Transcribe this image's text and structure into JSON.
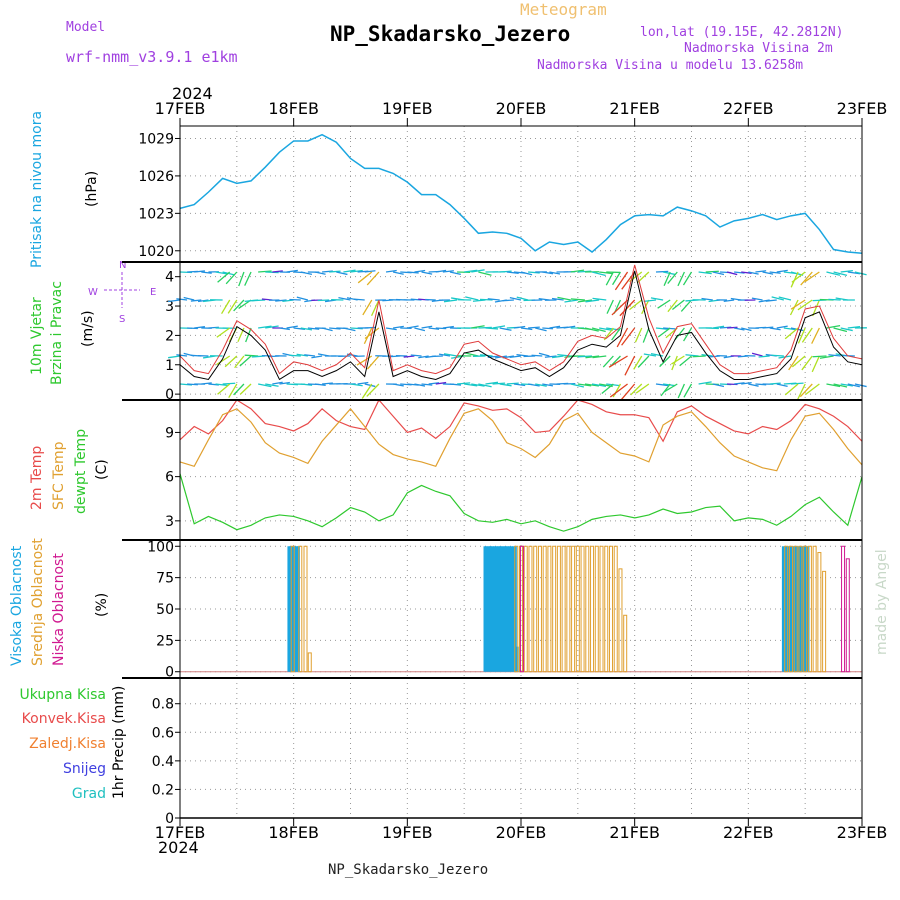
{
  "header": {
    "model_label": "Model",
    "model_value": "wrf-nmm_v3.9.1 e1km",
    "meteogram_label": "Meteogram",
    "station": "NP_Skadarsko_Jezero",
    "lonlat": "lon,lat (19.15E, 42.2812N)",
    "altitude": "Nadmorska Visina 2m",
    "model_altitude": "Nadmorska Visina u modelu 13.6258m",
    "footer_station": "NP_Skadarsko_Jezero",
    "watermark": "made by Angel",
    "year_top": "2024",
    "year_bottom": "2024"
  },
  "dates": [
    "17FEB",
    "18FEB",
    "19FEB",
    "20FEB",
    "21FEB",
    "22FEB",
    "23FEB"
  ],
  "panel_labels": {
    "pressure": [
      "Pritisak na nivou mora",
      "(hPa)"
    ],
    "wind": [
      "10m Vjetar",
      "Brzina i Pravac",
      "(m/s)"
    ],
    "compass": {
      "n": "N",
      "s": "S",
      "e": "E",
      "w": "W"
    },
    "temp": [
      "2m Temp",
      "SFC Temp",
      "dewpt Temp",
      "(C)"
    ],
    "cloud": [
      "Visoka Oblacnost",
      "Srednja Oblacnost",
      "Niska Oblacnost",
      "(%)"
    ],
    "precip_legend": [
      "Ukupna Kisa",
      "Konvek.Kisa",
      "Zaledj.Kisa",
      "Snijeg",
      "Grad"
    ],
    "precip_axis": "1hr Precip (mm)"
  },
  "colors": {
    "pressure": "#1aa6e0",
    "wind_speed": "#000000",
    "wind_gust": "#e03c3c",
    "temp2m": "#e84b4b",
    "sfc": "#e0a030",
    "dew": "#2ec82e",
    "cloud_high": "#1aa6e0",
    "cloud_mid": "#e0a030",
    "cloud_low": "#d01890",
    "precip_total": "#2ec82e",
    "precip_conv": "#e84b4b",
    "precip_frz": "#f08030",
    "precip_snow": "#4040e0",
    "precip_hail": "#20c0c0",
    "purple": "#a040e0"
  },
  "chart_data": [
    {
      "type": "line",
      "name": "pressure",
      "ylabel": "(hPa)",
      "ylim": [
        1019.1,
        1030.0
      ],
      "yticks": [
        1020,
        1023,
        1026,
        1029
      ],
      "x": [
        "2024-02-17 00:00",
        "2024-02-17 03:00",
        "2024-02-17 06:00",
        "2024-02-17 09:00",
        "2024-02-17 12:00",
        "2024-02-17 15:00",
        "2024-02-17 18:00",
        "2024-02-17 21:00",
        "2024-02-18 00:00",
        "2024-02-18 03:00",
        "2024-02-18 06:00",
        "2024-02-18 09:00",
        "2024-02-18 12:00",
        "2024-02-18 15:00",
        "2024-02-18 18:00",
        "2024-02-18 21:00",
        "2024-02-19 00:00",
        "2024-02-19 03:00",
        "2024-02-19 06:00",
        "2024-02-19 09:00",
        "2024-02-19 12:00",
        "2024-02-19 15:00",
        "2024-02-19 18:00",
        "2024-02-19 21:00",
        "2024-02-20 00:00",
        "2024-02-20 03:00",
        "2024-02-20 06:00",
        "2024-02-20 09:00",
        "2024-02-20 12:00",
        "2024-02-20 15:00",
        "2024-02-20 18:00",
        "2024-02-20 21:00",
        "2024-02-21 00:00",
        "2024-02-21 03:00",
        "2024-02-21 06:00",
        "2024-02-21 09:00",
        "2024-02-21 12:00",
        "2024-02-21 15:00",
        "2024-02-21 18:00",
        "2024-02-21 21:00",
        "2024-02-22 00:00",
        "2024-02-22 03:00",
        "2024-02-22 06:00",
        "2024-02-22 09:00",
        "2024-02-22 12:00",
        "2024-02-22 15:00",
        "2024-02-22 18:00",
        "2024-02-22 21:00",
        "2024-02-23 00:00"
      ],
      "series": [
        {
          "values": [
            1023.4,
            1023.7,
            1024.7,
            1025.8,
            1025.4,
            1025.6,
            1026.7,
            1027.9,
            1028.8,
            1028.8,
            1029.3,
            1028.7,
            1027.4,
            1026.6,
            1026.6,
            1026.2,
            1025.5,
            1024.5,
            1024.5,
            1023.7,
            1022.6,
            1021.4,
            1021.5,
            1021.4,
            1021.0,
            1020.0,
            1020.7,
            1020.5,
            1020.7,
            1019.9,
            1020.9,
            1022.1,
            1022.8,
            1022.9,
            1022.8,
            1023.5,
            1023.2,
            1022.8,
            1021.9,
            1022.4,
            1022.6,
            1022.9,
            1022.5,
            1022.8,
            1023.0,
            1021.7,
            1020.1,
            1019.9,
            1019.8
          ]
        }
      ]
    },
    {
      "type": "line",
      "name": "wind",
      "ylabel": "(m/s)",
      "ylim": [
        -0.2,
        4.5
      ],
      "yticks": [
        0,
        1,
        2,
        3,
        4
      ],
      "x": [
        "2024-02-17 00:00",
        "2024-02-17 03:00",
        "2024-02-17 06:00",
        "2024-02-17 09:00",
        "2024-02-17 12:00",
        "2024-02-17 15:00",
        "2024-02-17 18:00",
        "2024-02-17 21:00",
        "2024-02-18 00:00",
        "2024-02-18 03:00",
        "2024-02-18 06:00",
        "2024-02-18 09:00",
        "2024-02-18 12:00",
        "2024-02-18 15:00",
        "2024-02-18 18:00",
        "2024-02-18 21:00",
        "2024-02-19 00:00",
        "2024-02-19 03:00",
        "2024-02-19 06:00",
        "2024-02-19 09:00",
        "2024-02-19 12:00",
        "2024-02-19 15:00",
        "2024-02-19 18:00",
        "2024-02-19 21:00",
        "2024-02-20 00:00",
        "2024-02-20 03:00",
        "2024-02-20 06:00",
        "2024-02-20 09:00",
        "2024-02-20 12:00",
        "2024-02-20 15:00",
        "2024-02-20 18:00",
        "2024-02-20 21:00",
        "2024-02-21 00:00",
        "2024-02-21 03:00",
        "2024-02-21 06:00",
        "2024-02-21 09:00",
        "2024-02-21 12:00",
        "2024-02-21 15:00",
        "2024-02-21 18:00",
        "2024-02-21 21:00",
        "2024-02-22 00:00",
        "2024-02-22 03:00",
        "2024-02-22 06:00",
        "2024-02-22 09:00",
        "2024-02-22 12:00",
        "2024-02-22 15:00",
        "2024-02-22 18:00",
        "2024-02-22 21:00",
        "2024-02-23 00:00"
      ],
      "series": [
        {
          "values": [
            1.0,
            0.6,
            0.5,
            1.2,
            2.3,
            2.0,
            1.5,
            0.5,
            0.8,
            0.8,
            0.6,
            0.8,
            1.1,
            0.6,
            2.8,
            0.6,
            0.8,
            0.6,
            0.5,
            0.7,
            1.4,
            1.5,
            1.2,
            1.0,
            0.8,
            0.9,
            0.6,
            0.9,
            1.5,
            1.7,
            1.6,
            2.0,
            4.2,
            2.2,
            1.1,
            2.0,
            2.1,
            1.4,
            0.8,
            0.5,
            0.5,
            0.6,
            0.7,
            1.2,
            2.6,
            2.8,
            1.6,
            1.1,
            1.0
          ]
        },
        {
          "values": [
            1.3,
            0.8,
            0.7,
            1.5,
            2.5,
            2.2,
            1.7,
            0.7,
            1.1,
            1.0,
            0.8,
            1.0,
            1.4,
            0.9,
            3.2,
            0.8,
            1.0,
            0.8,
            0.7,
            0.9,
            1.7,
            1.8,
            1.4,
            1.2,
            1.0,
            1.1,
            0.8,
            1.1,
            1.8,
            2.0,
            1.9,
            2.3,
            4.4,
            2.6,
            1.4,
            2.3,
            2.4,
            1.7,
            1.0,
            0.7,
            0.7,
            0.8,
            0.9,
            1.5,
            2.9,
            3.0,
            1.9,
            1.3,
            1.2
          ]
        }
      ]
    },
    {
      "type": "line",
      "name": "temperature",
      "ylabel": "(C)",
      "ylim": [
        1.7,
        11.2
      ],
      "yticks": [
        3,
        6,
        9
      ],
      "x": [
        "2024-02-17 00:00",
        "2024-02-17 03:00",
        "2024-02-17 06:00",
        "2024-02-17 09:00",
        "2024-02-17 12:00",
        "2024-02-17 15:00",
        "2024-02-17 18:00",
        "2024-02-17 21:00",
        "2024-02-18 00:00",
        "2024-02-18 03:00",
        "2024-02-18 06:00",
        "2024-02-18 09:00",
        "2024-02-18 12:00",
        "2024-02-18 15:00",
        "2024-02-18 18:00",
        "2024-02-18 21:00",
        "2024-02-19 00:00",
        "2024-02-19 03:00",
        "2024-02-19 06:00",
        "2024-02-19 09:00",
        "2024-02-19 12:00",
        "2024-02-19 15:00",
        "2024-02-19 18:00",
        "2024-02-19 21:00",
        "2024-02-20 00:00",
        "2024-02-20 03:00",
        "2024-02-20 06:00",
        "2024-02-20 09:00",
        "2024-02-20 12:00",
        "2024-02-20 15:00",
        "2024-02-20 18:00",
        "2024-02-20 21:00",
        "2024-02-21 00:00",
        "2024-02-21 03:00",
        "2024-02-21 06:00",
        "2024-02-21 09:00",
        "2024-02-21 12:00",
        "2024-02-21 15:00",
        "2024-02-21 18:00",
        "2024-02-21 21:00",
        "2024-02-22 00:00",
        "2024-02-22 03:00",
        "2024-02-22 06:00",
        "2024-02-22 09:00",
        "2024-02-22 12:00",
        "2024-02-22 15:00",
        "2024-02-22 18:00",
        "2024-02-22 21:00",
        "2024-02-23 00:00"
      ],
      "series": [
        {
          "values": [
            8.5,
            9.4,
            8.9,
            9.8,
            11.2,
            10.6,
            9.6,
            9.4,
            9.1,
            9.6,
            10.6,
            9.8,
            9.4,
            9.2,
            11.2,
            10.1,
            9.0,
            9.3,
            8.6,
            9.4,
            11.0,
            10.8,
            10.5,
            10.6,
            10.0,
            9.0,
            9.1,
            10.1,
            11.2,
            10.9,
            10.4,
            10.2,
            10.2,
            10.0,
            8.4,
            10.4,
            10.8,
            10.1,
            9.6,
            9.1,
            8.9,
            9.4,
            9.2,
            9.8,
            10.9,
            10.6,
            10.1,
            9.4,
            8.4
          ]
        },
        {
          "values": [
            7.0,
            6.7,
            8.5,
            10.2,
            10.6,
            9.7,
            8.3,
            7.6,
            7.3,
            6.9,
            8.4,
            9.5,
            10.6,
            9.4,
            8.2,
            7.5,
            7.2,
            7.0,
            6.7,
            8.6,
            10.3,
            10.6,
            9.8,
            8.3,
            7.9,
            7.3,
            8.2,
            9.8,
            10.3,
            9.0,
            8.3,
            7.6,
            7.4,
            7.0,
            9.5,
            10.1,
            10.4,
            9.4,
            8.3,
            7.4,
            7.0,
            6.6,
            6.4,
            8.5,
            10.1,
            10.3,
            9.2,
            7.9,
            6.8
          ]
        },
        {
          "values": [
            6.2,
            2.8,
            3.3,
            2.9,
            2.4,
            2.7,
            3.2,
            3.4,
            3.3,
            3.0,
            2.6,
            3.2,
            3.9,
            3.6,
            3.0,
            3.4,
            4.9,
            5.4,
            5.0,
            4.7,
            3.5,
            3.0,
            2.9,
            3.1,
            2.8,
            3.0,
            2.6,
            2.3,
            2.6,
            3.1,
            3.3,
            3.4,
            3.2,
            3.4,
            3.8,
            3.5,
            3.6,
            3.9,
            4.0,
            3.0,
            3.2,
            3.1,
            2.7,
            3.3,
            4.1,
            4.6,
            3.6,
            2.7,
            6.0
          ]
        }
      ]
    },
    {
      "type": "bar",
      "name": "cloud_cover",
      "ylabel": "(%)",
      "ylim": [
        -5,
        105
      ],
      "yticks": [
        0,
        25,
        50,
        75,
        100
      ],
      "x_range": [
        "2024-02-17 00:00",
        "2024-02-23 00:00"
      ],
      "series": [
        {
          "values_by_hour": {
            "23.0": 100,
            "23.4": 100,
            "23.8": 100,
            "24.2": 100,
            "24.6": 100,
            "25.0": 100,
            "64.4": 100,
            "64.8": 100,
            "65.2": 100,
            "65.6": 100,
            "66.0": 100,
            "66.4": 100,
            "66.8": 100,
            "67.2": 100,
            "67.6": 100,
            "68.0": 100,
            "68.4": 100,
            "68.8": 100,
            "69.2": 100,
            "69.6": 100,
            "70.0": 100,
            "70.4": 100,
            "70.8": 100,
            "71.2": 20,
            "127.4": 100,
            "127.8": 100,
            "128.2": 100,
            "128.6": 100,
            "129.0": 100,
            "129.4": 100,
            "129.8": 100,
            "130.2": 100,
            "130.6": 100,
            "131.0": 100,
            "131.4": 100,
            "131.8": 100,
            "132.2": 100,
            "132.6": 100
          }
        },
        {
          "values_by_hour": {
            "23.8": 100,
            "25.4": 100,
            "26.5": 100,
            "27.4": 15,
            "71.0": 100,
            "72.0": 100,
            "73.0": 100,
            "74.0": 100,
            "75.0": 100,
            "76.0": 100,
            "77.0": 100,
            "78.0": 100,
            "79.0": 100,
            "80.0": 100,
            "81.0": 100,
            "82.0": 100,
            "83.0": 100,
            "84.0": 100,
            "85.0": 100,
            "86.0": 100,
            "87.0": 100,
            "88.0": 100,
            "89.0": 100,
            "90.0": 100,
            "91.0": 100,
            "92.0": 100,
            "93.0": 82,
            "94.0": 45,
            "128.0": 100,
            "129.0": 100,
            "130.0": 100,
            "131.0": 100,
            "132.0": 100,
            "133.0": 100,
            "134.0": 100,
            "135.0": 95,
            "136.0": 80
          }
        },
        {
          "values_by_hour": {
            "72.2": 100,
            "140.0": 100,
            "141.0": 90
          }
        }
      ]
    },
    {
      "type": "bar",
      "name": "precipitation",
      "ylabel": "1hr Precip (mm)",
      "ylim": [
        0,
        0.98
      ],
      "yticks": [
        0,
        0.2,
        0.4,
        0.6,
        0.8
      ],
      "x_range": [
        "2024-02-17 00:00",
        "2024-02-23 00:00"
      ],
      "series": [
        {
          "values": []
        }
      ]
    }
  ]
}
